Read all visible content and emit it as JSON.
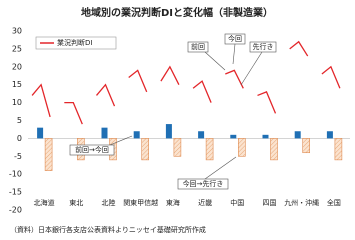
{
  "chart_data": {
    "type": "bar-line",
    "title": "地域別の業況判断DIと変化幅（非製造業）",
    "categories": [
      "北海道",
      "東北",
      "北陸",
      "関東甲信越",
      "東海",
      "近畿",
      "中国",
      "四国",
      "九州・沖縄",
      "全国"
    ],
    "di": {
      "name": "業況判断DI",
      "color": "#e3262a",
      "values": [
        [
          12,
          15,
          6
        ],
        [
          10,
          10,
          4
        ],
        [
          12,
          15,
          9
        ],
        [
          17,
          19,
          13
        ],
        [
          16,
          20,
          15
        ],
        [
          14,
          16,
          10
        ],
        [
          18,
          19,
          14
        ],
        [
          12,
          13,
          7
        ],
        [
          25,
          27,
          23
        ],
        [
          18,
          20,
          14
        ]
      ]
    },
    "change_prev_to_curr": {
      "color": "#1f6fb4",
      "values": [
        3,
        0,
        3,
        2,
        4,
        2,
        1,
        1,
        2,
        2
      ]
    },
    "change_curr_to_outlook": {
      "color": "#e08a50",
      "values": [
        -9,
        -6,
        -6,
        -6,
        -5,
        -6,
        -5,
        -6,
        -4,
        -6
      ]
    },
    "annotations": {
      "prev": "前回",
      "curr": "今回",
      "outlook": "先行き",
      "prev_to_curr": "前回→今回",
      "curr_to_outlook": "今回→先行き"
    },
    "ylim": [
      -20,
      30
    ],
    "yticks": [
      -20,
      -15,
      -10,
      -5,
      0,
      5,
      10,
      15,
      20,
      25,
      30
    ],
    "source": "（資料）日本銀行各支店公表資料よりニッセイ基礎研究所作成"
  }
}
